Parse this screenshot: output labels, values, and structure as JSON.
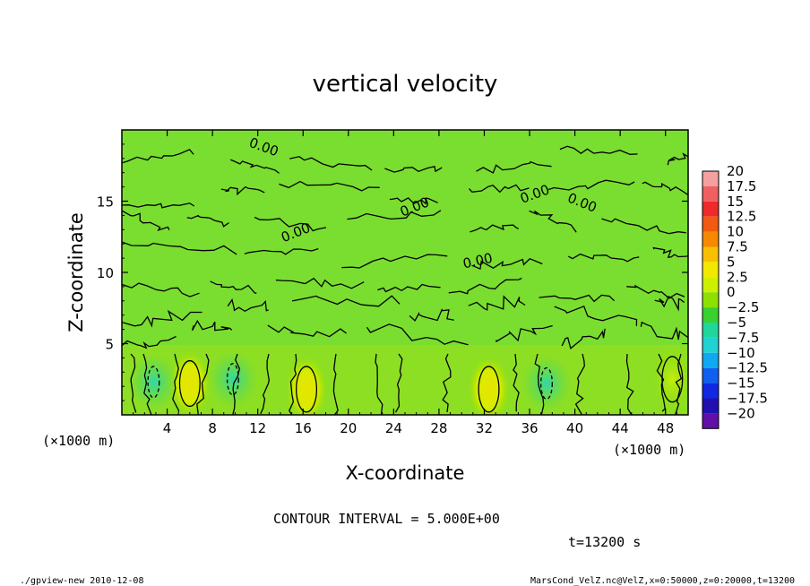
{
  "chart_data": {
    "type": "heatmap",
    "title": "vertical velocity",
    "xlabel": "X-coordinate",
    "ylabel": "Z-coordinate",
    "x_unit": "(×1000 m)",
    "y_unit": "(×1000 m)",
    "xlim": [
      0,
      50
    ],
    "ylim": [
      0,
      20
    ],
    "x_ticks": [
      4,
      8,
      12,
      16,
      20,
      24,
      28,
      32,
      36,
      40,
      44,
      48
    ],
    "x_tick_labels": [
      "4",
      "8",
      "12",
      "16",
      "20",
      "24",
      "28",
      "32",
      "36",
      "40",
      "44",
      "48"
    ],
    "y_ticks": [
      5,
      10,
      15
    ],
    "y_tick_labels": [
      "5",
      "10",
      "15"
    ],
    "colorbar": {
      "labels": [
        "20",
        "17.5",
        "15",
        "12.5",
        "10",
        "7.5",
        "5",
        "2.5",
        "0",
        "−2.5",
        "−5",
        "−7.5",
        "−10",
        "−12.5",
        "−15",
        "−17.5",
        "−20"
      ],
      "colors": [
        "#f4a0a0",
        "#f06060",
        "#ef2a2a",
        "#f25a10",
        "#f58a00",
        "#f8c000",
        "#f2e800",
        "#cdf000",
        "#8ee000",
        "#39d030",
        "#1fd79a",
        "#20d2d2",
        "#10a8f0",
        "#1060f0",
        "#1028e0",
        "#2010b0",
        "#6010a8"
      ]
    },
    "contour_label": "0.00",
    "contour_interval_text": "CONTOUR INTERVAL = 5.000E+00",
    "updrafts": [
      {
        "x": 6.0,
        "z": 2.2,
        "w": 7.5
      },
      {
        "x": 16.3,
        "z": 1.8,
        "w": 7.0
      },
      {
        "x": 32.4,
        "z": 1.8,
        "w": 7.0
      },
      {
        "x": 48.6,
        "z": 2.5,
        "w": 5.0
      }
    ],
    "downdrafts": [
      {
        "x": 2.8,
        "z": 2.3,
        "w": -2.5
      },
      {
        "x": 9.8,
        "z": 2.5,
        "w": -2.5
      },
      {
        "x": 37.5,
        "z": 2.2,
        "w": -2.5
      }
    ]
  },
  "footer": {
    "time": "t=13200 s",
    "left": "./gpview-new  2010-12-08",
    "right": "MarsCond_VelZ.nc@VelZ,x=0:50000,z=0:20000,t=13200"
  }
}
